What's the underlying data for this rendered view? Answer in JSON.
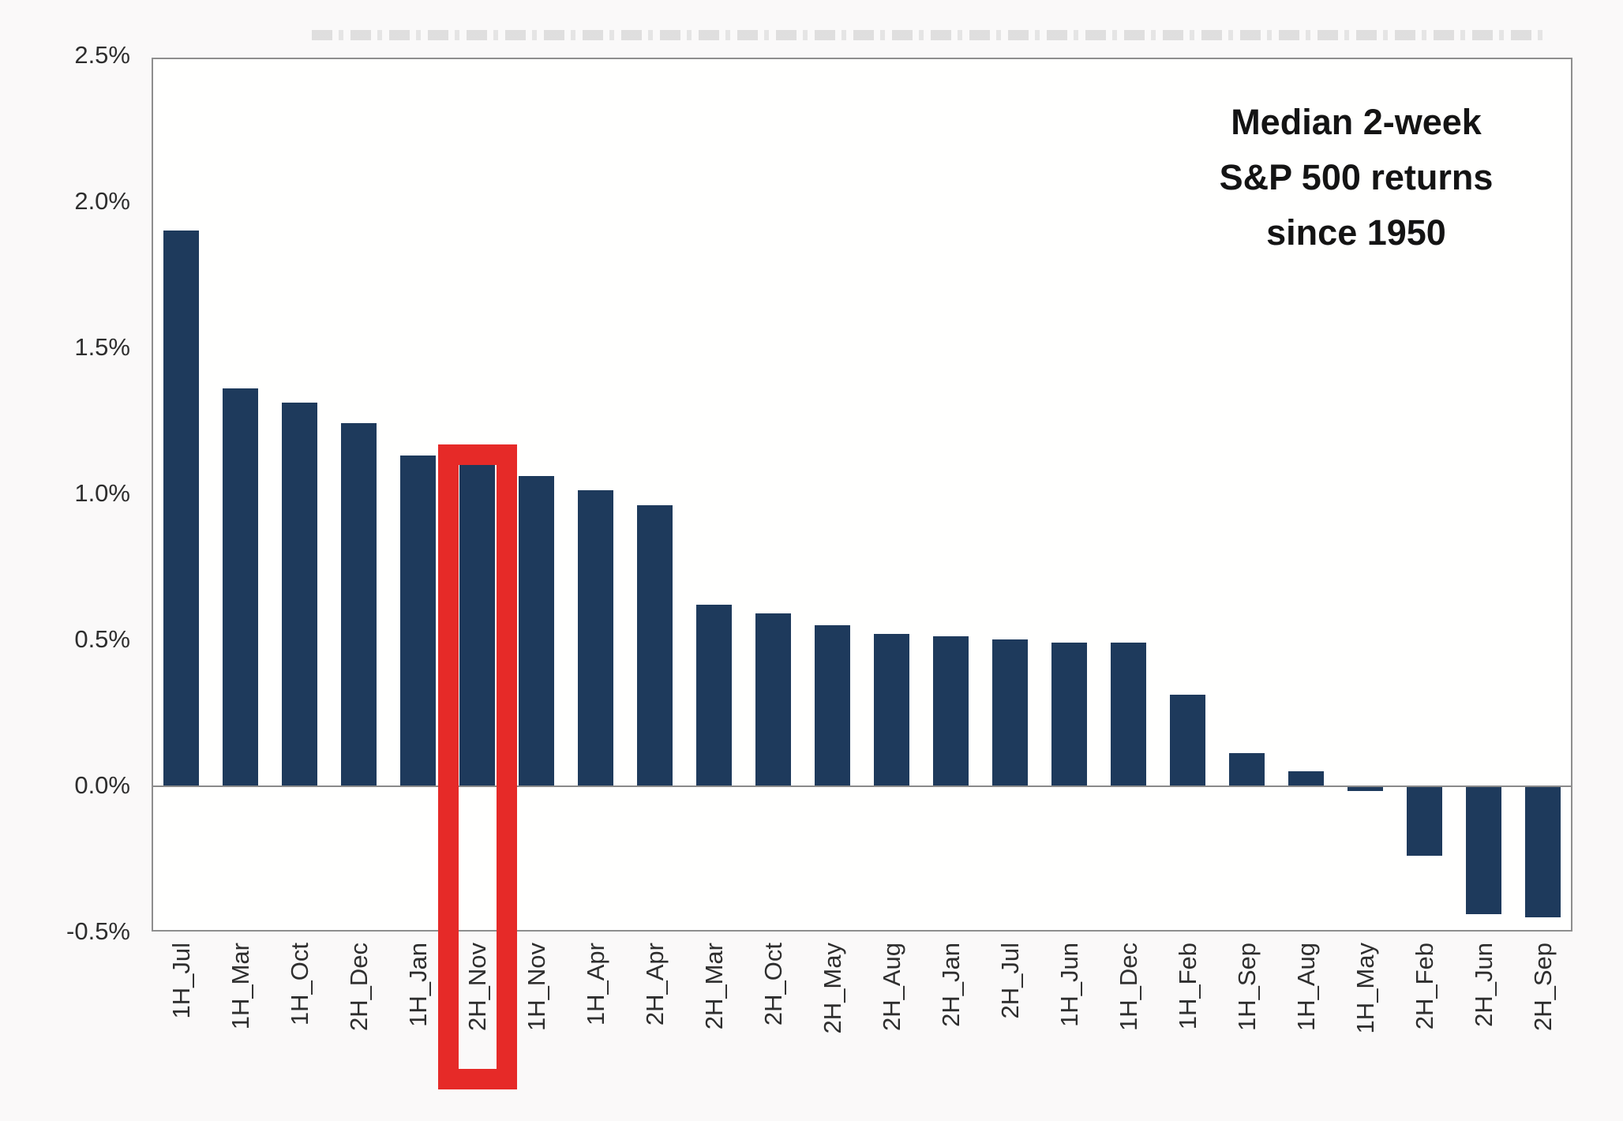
{
  "chart_data": {
    "type": "bar",
    "title_lines": [
      "Median 2-week",
      "S&P 500 returns",
      "since 1950"
    ],
    "title": "Median 2-week S&P 500 returns since 1950",
    "categories": [
      "1H_Jul",
      "1H_Mar",
      "1H_Oct",
      "2H_Dec",
      "1H_Jan",
      "2H_Nov",
      "1H_Nov",
      "1H_Apr",
      "2H_Apr",
      "2H_Mar",
      "2H_Oct",
      "2H_May",
      "2H_Aug",
      "2H_Jan",
      "2H_Jul",
      "1H_Jun",
      "1H_Dec",
      "1H_Feb",
      "1H_Sep",
      "1H_Aug",
      "1H_May",
      "2H_Feb",
      "2H_Jun",
      "2H_Sep"
    ],
    "values": [
      1.9,
      1.36,
      1.31,
      1.24,
      1.13,
      1.1,
      1.06,
      1.01,
      0.96,
      0.62,
      0.59,
      0.55,
      0.52,
      0.51,
      0.5,
      0.49,
      0.49,
      0.31,
      0.11,
      0.05,
      -0.02,
      -0.24,
      -0.44,
      -0.45
    ],
    "value_unit": "%",
    "xlabel": "",
    "ylabel": "",
    "ylim": [
      -0.5,
      2.5
    ],
    "grid": false,
    "legend_position": "none",
    "yticks": [
      {
        "label": "2.5%",
        "value": 2.5
      },
      {
        "label": "2.0%",
        "value": 2.0
      },
      {
        "label": "1.5%",
        "value": 1.5
      },
      {
        "label": "1.0%",
        "value": 1.0
      },
      {
        "label": "0.5%",
        "value": 0.5
      },
      {
        "label": "0.0%",
        "value": 0.0
      },
      {
        "label": "-0.5%",
        "value": -0.5
      }
    ],
    "highlight": {
      "category": "2H_Nov",
      "style": "red-outline-box"
    }
  },
  "colors": {
    "bar": "#1e3a5c",
    "highlight_box": "#e62a28",
    "axis_frame": "#8e8e8e",
    "zero_line": "#8a8a8a",
    "text": "#2e2e2e",
    "title_text": "#141414",
    "background": "#faf9f9",
    "plot_background": "#fffffe"
  }
}
